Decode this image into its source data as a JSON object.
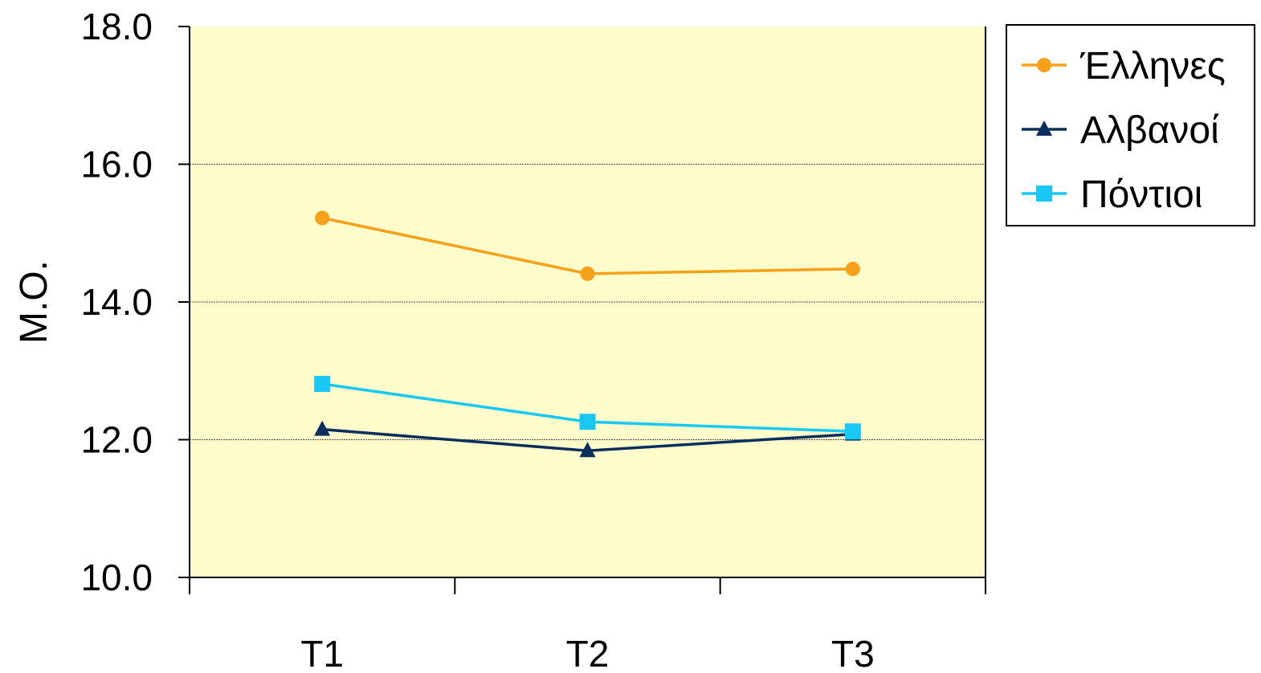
{
  "chart_data": {
    "type": "line",
    "categories": [
      "T1",
      "T2",
      "T3"
    ],
    "ylabel": "Μ.Ο.",
    "ylim": [
      10.0,
      18.0
    ],
    "yticks": [
      "10.0",
      "12.0",
      "14.0",
      "16.0",
      "18.0"
    ],
    "grid": true,
    "plot_background": "#FFFCCC",
    "legend_position": "top-right",
    "series": [
      {
        "name": "Έλληνες",
        "values": [
          15.22,
          14.41,
          14.48
        ],
        "color": "#F7A11A",
        "marker": "circle"
      },
      {
        "name": "Αλβανοί",
        "values": [
          12.15,
          11.84,
          12.08
        ],
        "color": "#0A2F5C",
        "marker": "triangle"
      },
      {
        "name": "Πόντιοι",
        "values": [
          12.81,
          12.26,
          12.12
        ],
        "color": "#19C8F5",
        "marker": "square"
      }
    ]
  }
}
